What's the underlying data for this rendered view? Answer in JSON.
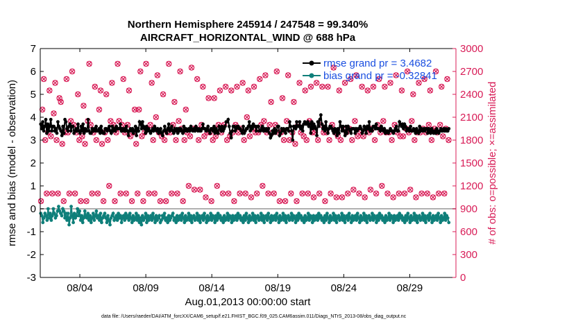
{
  "chart_data": {
    "type": "line",
    "title_line1": "Northern Hemisphere 245914 / 247548 = 99.340%",
    "title_line2": "AIRCRAFT_HORIZONTAL_WIND @ 688 hPa",
    "xlabel": "Aug.01,2013 00:00:00 start",
    "ylabel_left": "rmse and bias (model - observation)",
    "ylabel_right": "# of obs: o=possible; ×=assimilated",
    "footnote": "data file: /Users/raeder/DAI/ATM_forcXX/CAM6_setup/f.e21.FHIST_BGC.f09_025.CAM6assim.011/Diags_NTrS_2013-08/obs_diag_output.nc",
    "x_range_days": [
      0,
      31.5
    ],
    "x_ticks": [
      {
        "day": 3,
        "label": "08/04"
      },
      {
        "day": 8,
        "label": "08/09"
      },
      {
        "day": 13,
        "label": "08/14"
      },
      {
        "day": 18,
        "label": "08/19"
      },
      {
        "day": 23,
        "label": "08/24"
      },
      {
        "day": 28,
        "label": "08/29"
      }
    ],
    "y_left": {
      "min": -3,
      "max": 7,
      "ticks": [
        "-3",
        "-2",
        "-1",
        "0",
        "1",
        "2",
        "3",
        "4",
        "5",
        "6",
        "7"
      ]
    },
    "y_right": {
      "min": 0,
      "max": 3000,
      "ticks": [
        "0",
        "300",
        "600",
        "900",
        "1200",
        "1500",
        "1800",
        "2100",
        "2400",
        "2700",
        "3000"
      ]
    },
    "colors": {
      "rmse": "#000000",
      "bias": "#0f7f7a",
      "obs": "#d81b56",
      "legend_text": "#1a4fe0",
      "right_axis": "#d81b56",
      "zero_line": "#b0b0b0"
    },
    "legend": [
      {
        "series": "rmse",
        "label": "rmse grand pr = 3.4682"
      },
      {
        "series": "bias",
        "label": "bias grand pr = -0.32841"
      }
    ],
    "series": [
      {
        "name": "rmse",
        "axis": "left",
        "values": [
          3.7,
          3.5,
          3.8,
          3.4,
          3.6,
          3.9,
          3.3,
          3.7,
          3.4,
          3.6,
          3.9,
          3.4,
          3.6,
          3.6,
          3.4,
          3.5,
          3.3,
          3.8,
          3.6,
          3.5,
          3.4,
          3.2,
          3.6,
          3.3,
          3.9,
          3.8,
          3.5,
          3.4,
          3.6,
          3.7,
          3.4,
          3.6,
          3.6,
          3.3,
          3.4,
          3.5,
          3.4,
          3.7,
          3.4,
          3.3,
          3.6,
          3.4,
          3.7,
          3.3,
          3.5,
          3.4,
          3.4,
          3.9,
          3.4,
          3.3,
          3.3,
          3.5,
          3.4,
          3.5,
          3.4,
          3.6,
          3.4,
          3.4,
          3.5,
          3.3,
          3.6,
          3.4,
          3.3,
          3.3,
          3.5,
          3.5,
          3.4,
          3.5,
          3.6,
          3.4,
          3.3,
          3.6,
          3.4,
          3.5,
          3.4,
          3.6,
          3.5,
          3.5,
          3.5,
          3.7,
          3.4,
          3.5,
          3.4,
          3.5,
          3.4,
          3.6,
          3.4,
          3.2,
          3.4,
          3.5,
          3.4,
          3.5,
          3.3,
          3.4,
          3.6,
          3.2,
          3.5,
          3.4,
          3.8,
          3.7,
          3.5,
          3.8,
          3.6,
          3.5,
          3.3,
          3.6,
          3.4,
          3.5,
          3.4,
          3.3,
          3.4,
          3.5,
          3.4,
          3.6,
          3.5,
          3.4,
          3.5,
          3.3,
          3.4,
          3.5,
          3.3,
          3.2,
          3.4,
          3.6,
          3.4,
          3.3,
          3.5,
          3.7,
          3.4,
          3.5,
          3.6,
          3.4,
          3.3,
          3.5,
          3.4,
          3.5,
          3.3,
          3.5,
          3.4,
          3.5,
          3.4,
          3.3,
          3.6,
          3.4,
          3.5,
          3.4,
          3.4,
          3.5,
          3.4,
          3.6,
          3.5,
          3.4,
          3.5,
          3.4,
          3.6,
          3.5,
          3.4,
          3.5,
          3.4,
          3.4,
          3.5,
          3.7,
          3.5,
          3.5,
          3.4,
          3.5,
          3.6,
          3.4,
          3.3,
          3.5,
          3.5,
          3.4,
          3.6,
          3.3,
          3.5,
          3.4,
          3.3,
          3.6,
          3.5,
          3.4,
          3.6,
          3.4,
          3.5,
          3.6,
          3.8,
          3.8,
          3.9,
          3.6,
          3.3,
          3.1,
          3.4,
          3.6,
          3.6,
          3.4,
          3.5,
          3.6,
          3.6,
          3.5,
          3.5,
          3.4,
          3.3,
          3.6,
          3.3,
          3.4,
          3.5,
          3.5,
          3.6,
          3.8,
          3.4,
          3.6,
          3.5,
          3.7,
          3.6,
          3.6,
          3.4,
          3.6,
          3.6,
          3.4,
          3.4,
          3.5,
          3.6,
          3.4,
          3.5,
          3.4,
          3.5,
          3.4,
          3.5,
          3.3,
          3.1,
          3.2,
          3.4,
          3.3,
          3.5,
          3.3,
          3.4,
          3.6,
          3.6,
          3.2,
          3.3,
          3.5,
          3.4,
          3.5,
          3.4,
          3.3,
          3.5,
          3.5,
          3.4,
          3.8,
          3.6,
          3.4,
          3.0,
          3.6,
          3.6,
          3.5,
          3.8,
          3.6,
          3.6,
          3.8,
          3.5,
          3.6,
          3.4,
          3.7,
          3.8,
          3.7,
          3.7,
          3.8,
          3.6,
          3.7,
          3.3,
          3.8,
          3.5,
          3.7,
          3.6,
          3.5,
          3.2,
          3.8,
          3.6,
          3.9,
          4.1,
          3.7,
          3.5,
          3.6,
          3.4,
          3.8,
          3.5,
          3.3,
          3.5,
          3.6,
          3.6,
          3.5,
          3.4,
          3.3,
          3.5,
          3.4,
          3.2,
          3.5,
          3.3,
          3.8,
          3.6,
          3.4,
          3.6,
          3.4,
          3.2,
          3.6,
          3.3,
          3.6,
          3.5,
          3.4,
          3.3,
          3.5,
          3.5,
          3.5,
          3.3,
          3.5,
          3.4,
          3.5,
          3.5,
          3.6,
          3.5,
          3.3,
          3.4,
          3.6,
          3.5,
          3.3,
          3.6,
          3.5,
          3.8,
          3.4,
          3.5,
          3.4,
          3.6,
          3.6,
          3.5,
          3.7,
          3.5,
          3.5,
          3.5,
          3.4,
          3.6,
          3.5,
          3.4,
          3.5,
          3.3,
          3.4,
          3.4,
          3.3,
          3.4,
          3.5,
          3.4,
          3.4,
          3.3,
          3.4,
          3.5,
          3.6,
          3.4,
          3.4,
          3.8,
          3.7,
          3.6,
          3.7,
          3.5,
          3.7,
          3.6,
          3.4,
          3.5,
          3.5,
          3.4,
          3.6,
          3.4,
          3.4,
          3.5,
          3.4,
          3.3,
          3.5,
          3.4,
          3.3,
          3.6,
          3.4,
          3.5,
          3.4,
          3.5,
          3.4,
          3.5,
          3.5,
          3.3,
          3.5,
          3.4,
          3.3,
          3.5,
          3.4,
          3.3,
          3.4,
          3.3,
          3.5,
          3.4,
          3.3,
          3.4,
          3.5,
          3.4,
          3.4,
          3.5,
          3.4,
          3.5,
          3.4,
          3.4,
          3.5
        ]
      },
      {
        "name": "bias",
        "axis": "left",
        "values": [
          -0.2,
          -0.3,
          -0.6,
          -0.4,
          -0.2,
          -0.3,
          -0.5,
          0.0,
          -0.4,
          -0.2,
          -0.5,
          -0.3,
          0.0,
          -0.2,
          -0.4,
          -0.3,
          -0.1,
          0.1,
          -0.1,
          -0.2,
          -0.3,
          0.0,
          -0.1,
          -0.4,
          -0.2,
          -0.5,
          -0.2,
          -0.7,
          -0.4,
          0.1,
          -0.3,
          -0.6,
          -0.2,
          -0.4,
          -0.3,
          0.0,
          -0.3,
          -0.1,
          -0.5,
          -0.3,
          -0.6,
          -0.4,
          -0.1,
          -0.3,
          -0.4,
          -0.2,
          -0.5,
          -0.3,
          -0.6,
          -0.4,
          -0.2,
          -0.5,
          -0.3,
          -0.1,
          -0.4,
          -0.3,
          -0.5,
          -0.2,
          -0.6,
          -0.4,
          -0.3,
          -0.2,
          -0.4,
          -0.6,
          -0.3,
          -0.5,
          -0.7,
          -0.4,
          -0.3,
          -0.2,
          -0.5,
          -0.4,
          -0.3,
          -0.5,
          -0.2,
          -0.4,
          -0.3,
          -0.6,
          -0.4,
          -0.3,
          -0.5,
          -0.2,
          -0.4,
          -0.3,
          -0.5,
          -0.2,
          -0.4,
          -0.6,
          -0.3,
          -0.5,
          -0.4,
          -0.2,
          -0.5,
          -0.3,
          -0.6,
          -0.4,
          -0.7,
          -0.3,
          -0.5,
          -0.4,
          -0.2,
          -0.6,
          -0.3,
          -0.5,
          -0.4,
          -0.3,
          -0.5,
          -0.2,
          -0.4,
          -0.6,
          -0.3,
          -0.5,
          -0.4,
          -0.3,
          -0.6,
          -0.5,
          -0.3,
          -0.4,
          -0.2,
          -0.5,
          -0.4,
          -0.6,
          -0.3,
          -0.5,
          -0.4,
          -0.3,
          -0.2,
          -0.5,
          -0.4,
          -0.6,
          -0.3,
          -0.5,
          -0.4,
          -0.3,
          -0.5,
          -0.2,
          -0.4,
          -0.6,
          -0.3,
          -0.5,
          -0.4,
          -0.2,
          -0.5,
          -0.3,
          -0.6,
          -0.4,
          -0.3,
          -0.5,
          -0.4,
          -0.2,
          -0.5,
          -0.3,
          -0.6,
          -0.4,
          -0.3,
          -0.5,
          -0.2,
          -0.4,
          -0.6,
          -0.3,
          -0.5,
          -0.4,
          -0.2,
          -0.5,
          -0.3,
          -0.4,
          -0.6,
          -0.3,
          -0.5,
          -0.2,
          -0.4,
          -0.3,
          -0.5,
          -0.4,
          -0.6,
          -0.3,
          -0.5,
          -0.4,
          -0.2,
          -0.5,
          -0.3,
          -0.4,
          -0.6,
          -0.3,
          -0.5,
          -0.4,
          -0.3,
          -0.5,
          -0.2,
          -0.4,
          -0.3,
          -0.5,
          -0.4,
          -0.6,
          -0.3,
          -0.5,
          -0.2,
          -0.4,
          -0.6,
          -0.3,
          -0.5,
          -0.4,
          -0.2,
          -0.5,
          -0.3,
          -0.6,
          -0.4,
          -0.3,
          -0.5,
          -0.4,
          -0.2,
          -0.5,
          -0.3,
          -0.6,
          -0.4,
          -0.3,
          -0.5,
          -0.2,
          -0.4,
          -0.6,
          -0.3,
          -0.5,
          -0.4,
          -0.3,
          -0.5,
          -0.2,
          -0.4,
          -0.6,
          -0.3,
          -0.5,
          -0.4,
          -0.2,
          -0.5,
          -0.3,
          -0.6,
          -0.4,
          -0.3,
          -0.5,
          -0.4,
          -0.2,
          -0.5,
          -0.3,
          -0.4,
          -0.6,
          -0.3,
          -0.5,
          -0.2,
          -0.4,
          -0.3,
          -0.5,
          -0.4,
          -0.6,
          -0.3,
          -0.5,
          -0.4,
          -0.2,
          -0.5,
          -0.3,
          -0.4,
          -0.6,
          -0.3,
          -0.5,
          -0.4,
          -0.3,
          -0.5,
          -0.2,
          -0.4,
          -0.3,
          -0.5,
          -0.4,
          -0.6,
          -0.3,
          -0.5,
          -0.2,
          -0.4,
          -0.6,
          -0.3,
          -0.5,
          -0.4,
          -0.2,
          -0.5,
          -0.3,
          -0.6,
          -0.4,
          -0.3,
          -0.5,
          -0.4,
          -0.2,
          -0.5,
          -0.3,
          -0.6,
          -0.4,
          -0.3,
          -0.5,
          -0.2,
          -0.4,
          -0.6,
          -0.3,
          -0.5,
          -0.4,
          -0.3,
          -0.5,
          -0.2,
          -0.4,
          -0.6,
          -0.3,
          -0.5,
          -0.4,
          -0.2,
          -0.5,
          -0.3,
          -0.6,
          -0.4,
          -0.3,
          -0.5,
          -0.4,
          -0.2,
          -0.5,
          -0.3,
          -0.4,
          -0.6,
          -0.3,
          -0.5,
          -0.2,
          -0.4,
          -0.3,
          -0.5,
          -0.4,
          -0.6,
          -0.3,
          -0.5,
          -0.4,
          -0.2,
          -0.5,
          -0.3,
          -0.4,
          -0.6,
          -0.3,
          -0.5,
          -0.4,
          -0.3,
          -0.5,
          -0.2,
          -0.4,
          -0.3,
          -0.5,
          -0.4,
          -0.6,
          -0.3,
          -0.5,
          -0.2,
          -0.4,
          -0.6,
          -0.3,
          -0.5,
          -0.4,
          -0.2,
          -0.5,
          -0.3,
          -0.6,
          -0.4,
          -0.3,
          -0.5,
          -0.4,
          -0.2,
          -0.5,
          -0.3,
          -0.6,
          -0.4,
          -0.3,
          -0.5,
          -0.2,
          -0.4,
          -0.6,
          -0.3,
          -0.5,
          -0.4,
          -0.3,
          -0.5,
          -0.2,
          -0.4,
          -0.6,
          -0.3,
          -0.5,
          -0.4,
          -0.2,
          -0.5,
          -0.3,
          -0.4,
          -0.6
        ]
      },
      {
        "name": "obs",
        "axis": "right",
        "values": [
          1000,
          2200,
          2600,
          1800,
          1100,
          1900,
          2450,
          1850,
          1100,
          2150,
          2550,
          1800,
          1100,
          2350,
          2300,
          1750,
          1000,
          1900,
          2600,
          1900,
          1100,
          2050,
          2700,
          2000,
          1100,
          1900,
          2400,
          1800,
          1000,
          1850,
          2250,
          1750,
          1000,
          2050,
          2800,
          2000,
          1100,
          1900,
          2500,
          1800,
          1100,
          2200,
          2450,
          1750,
          1000,
          1900,
          2400,
          1800,
          1200,
          2050,
          2550,
          2000,
          1000,
          1900,
          2800,
          2050,
          1100,
          2000,
          2600,
          1900,
          1100,
          2000,
          2450,
          1850,
          1000,
          1900,
          2200,
          1750,
          1100,
          2200,
          2700,
          1850,
          1000,
          1900,
          2800,
          1950,
          1100,
          2000,
          2550,
          1800,
          1100,
          2100,
          2650,
          1900,
          1000,
          1850,
          2400,
          1800,
          1000,
          1900,
          2800,
          1900,
          1100,
          2000,
          2300,
          1800,
          1100,
          2050,
          2700,
          1950,
          1000,
          1800,
          2200,
          1900,
          1200,
          1850,
          2750,
          1950,
          1150,
          1950,
          2600,
          1800,
          1150,
          2000,
          2500,
          1850,
          1050,
          1900,
          2350,
          1900,
          1000,
          1800,
          2350,
          1850,
          1200,
          2000,
          2450,
          1900,
          1100,
          2000,
          2500,
          1800,
          1100,
          1850,
          2450,
          1900,
          1000,
          2000,
          2500,
          1900,
          1100,
          1950,
          2550,
          1800,
          1100,
          2100,
          2450,
          1850,
          1050,
          1950,
          2500,
          1900,
          1100,
          1900,
          2600,
          2000,
          1200,
          2050,
          2650,
          1900,
          1100,
          2000,
          2300,
          1900,
          1100,
          2000,
          2700,
          1900,
          1000,
          1900,
          2350,
          1800,
          1000,
          2050,
          2650,
          1800,
          1100,
          1900,
          2300,
          1750,
          1000,
          2000,
          2550,
          1900,
          1100,
          1850,
          2450,
          1800,
          1100,
          2050,
          2500,
          1900,
          1050,
          1900,
          2550,
          1800,
          1100,
          2000,
          2500,
          1900,
          1000,
          1900,
          2500,
          1800,
          1100,
          2000,
          2750,
          1900,
          1050,
          1850,
          2450,
          1800,
          1050,
          1950,
          2550,
          1900,
          1100,
          1950,
          2600,
          1800,
          1150,
          2050,
          2650,
          1850,
          1100,
          1900,
          2500,
          1850,
          1050,
          1950,
          2450,
          1900,
          1150,
          1950,
          2500,
          1800,
          1100,
          2000,
          2600,
          1900,
          1200,
          2050,
          2500,
          1900,
          1100,
          1900,
          2550,
          1800,
          1050,
          2000,
          2650,
          1900,
          1100,
          1850,
          2450,
          1850,
          1100,
          1950,
          2700,
          1900,
          1150,
          2050,
          2400,
          1800,
          1050,
          1900,
          2550,
          1900,
          1100,
          1950,
          2600,
          1900,
          1100,
          2000,
          2450,
          1800,
          1050,
          1950,
          2700,
          1900,
          1100,
          2000,
          2500,
          1850,
          1100,
          1950,
          2600,
          1800
        ]
      }
    ]
  }
}
